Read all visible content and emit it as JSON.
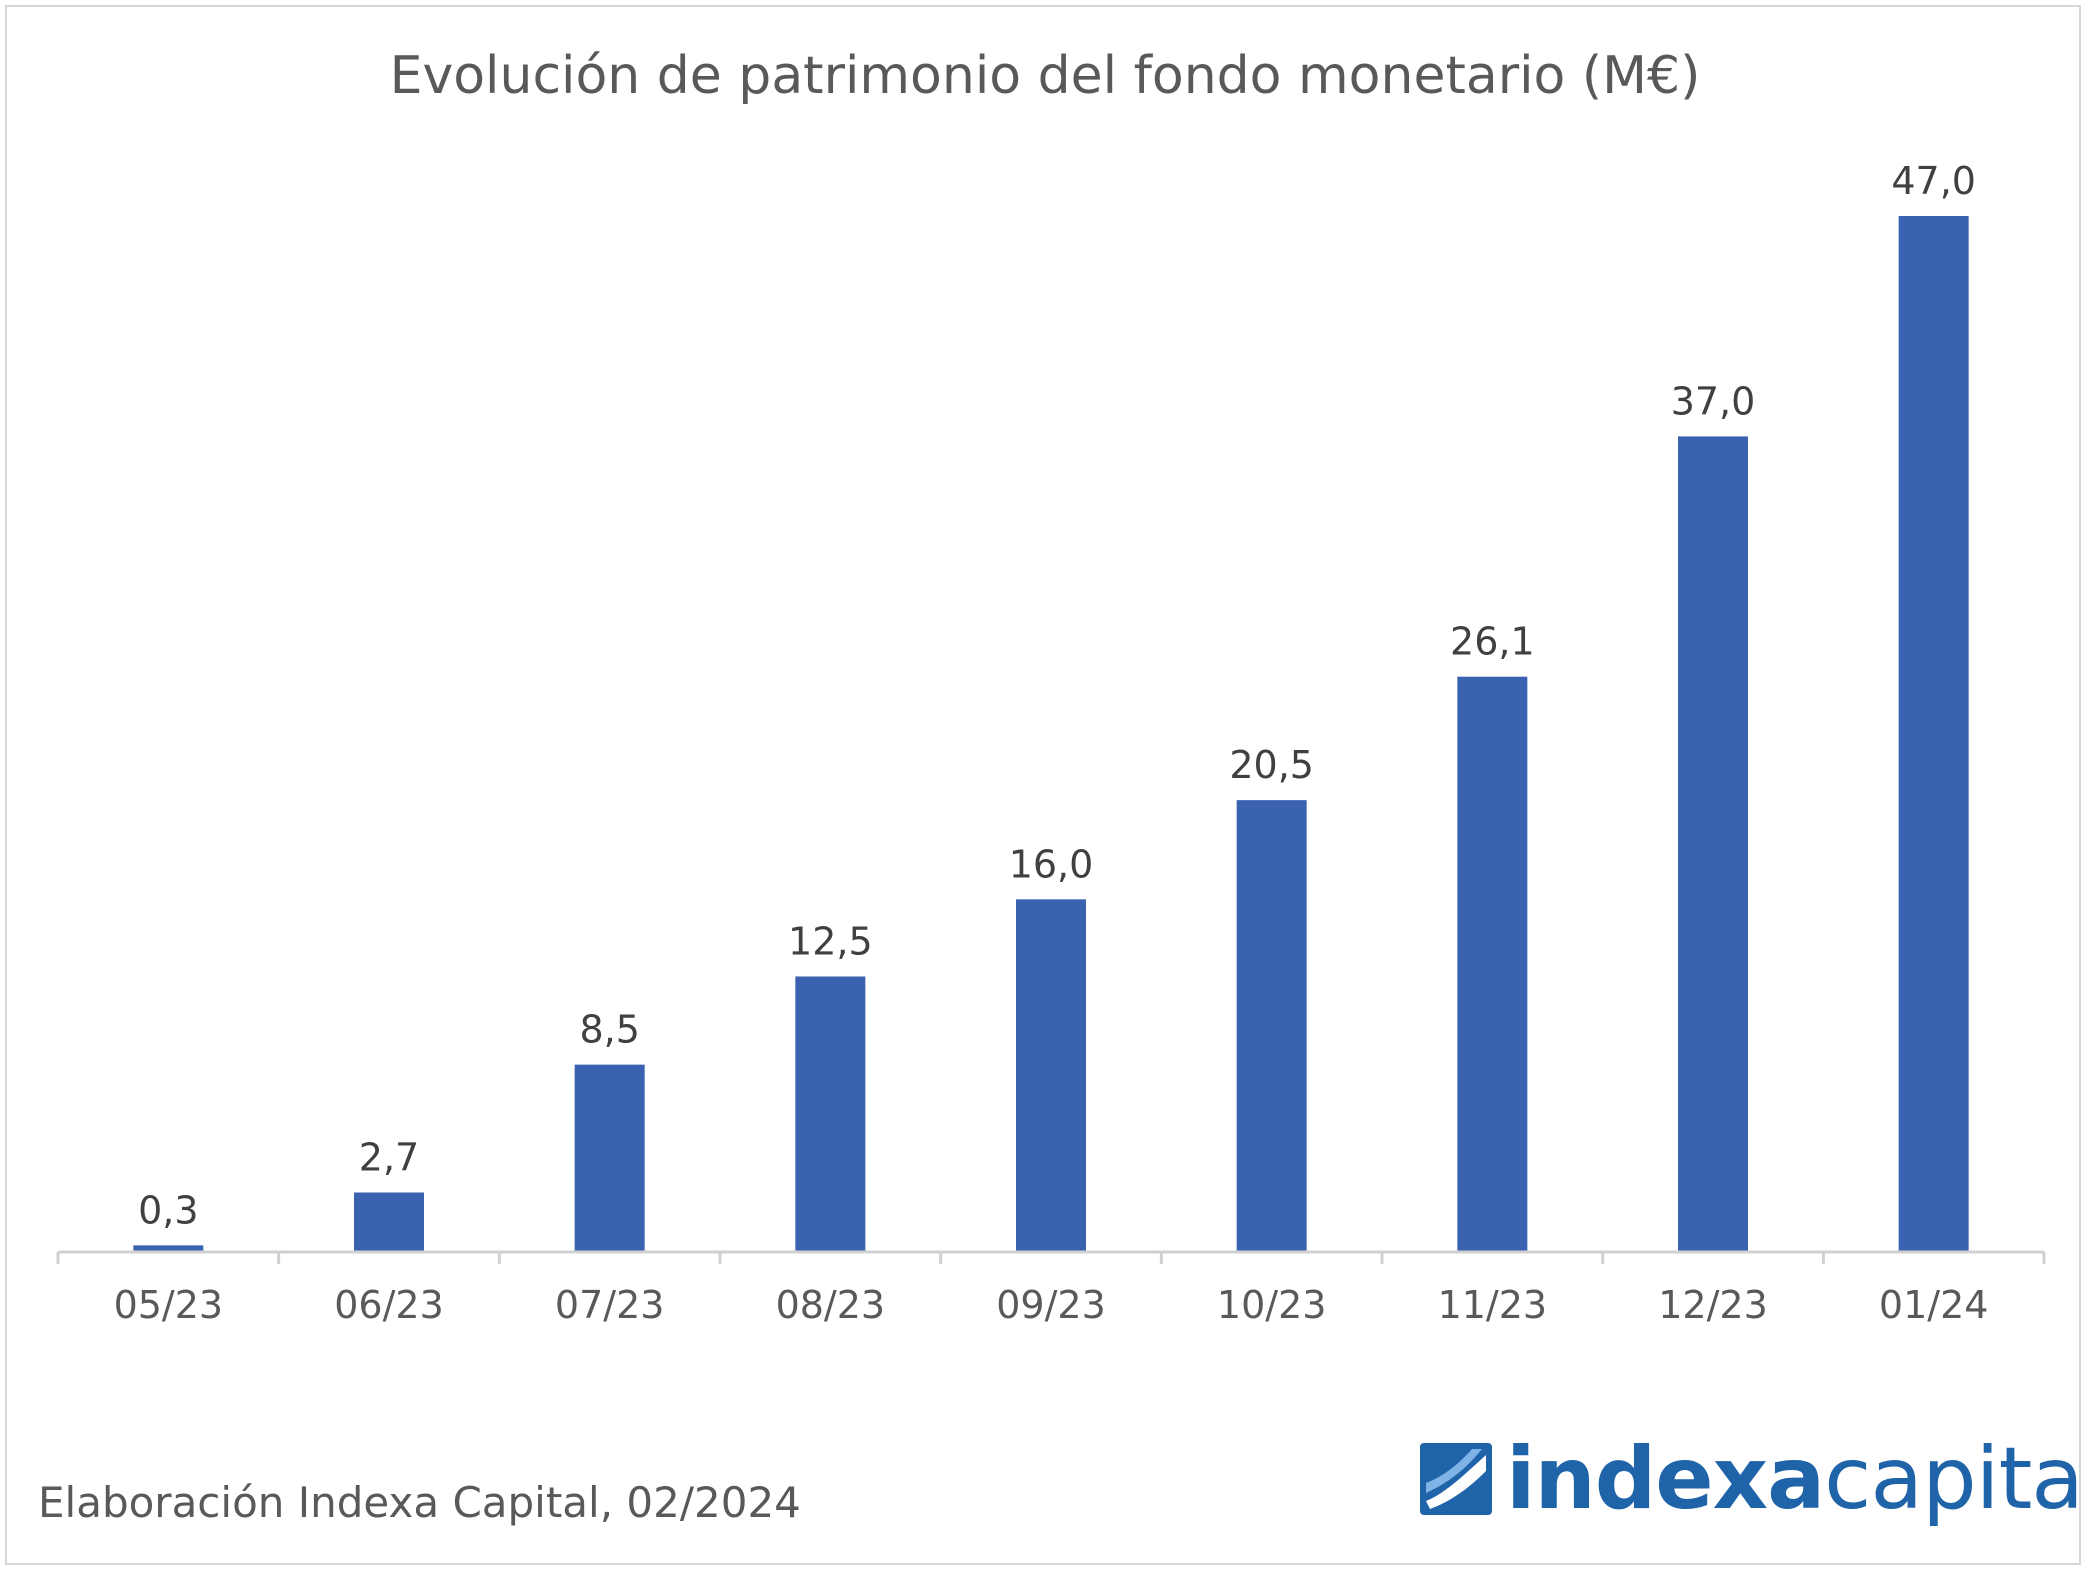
{
  "chart_data": {
    "type": "bar",
    "title": "Evolución de patrimonio del fondo monetario (M€)",
    "categories": [
      "05/23",
      "06/23",
      "07/23",
      "08/23",
      "09/23",
      "10/23",
      "11/23",
      "12/23",
      "01/24"
    ],
    "values": [
      0.3,
      2.7,
      8.5,
      12.5,
      16.0,
      20.5,
      26.1,
      37.0,
      47.0
    ],
    "data_labels": [
      "0,3",
      "2,7",
      "8,5",
      "12,5",
      "16,0",
      "20,5",
      "26,1",
      "37,0",
      "47,0"
    ],
    "xlabel": "",
    "ylabel": "",
    "ylim": [
      0,
      47
    ],
    "grid": false,
    "legend": "none",
    "bar_color": "#3b62b0"
  },
  "footer": {
    "source": "Elaboración Indexa Capital, 02/2024"
  },
  "brand": {
    "name_bold": "indexa",
    "name_light": "capital",
    "color": "#1f63a9"
  }
}
